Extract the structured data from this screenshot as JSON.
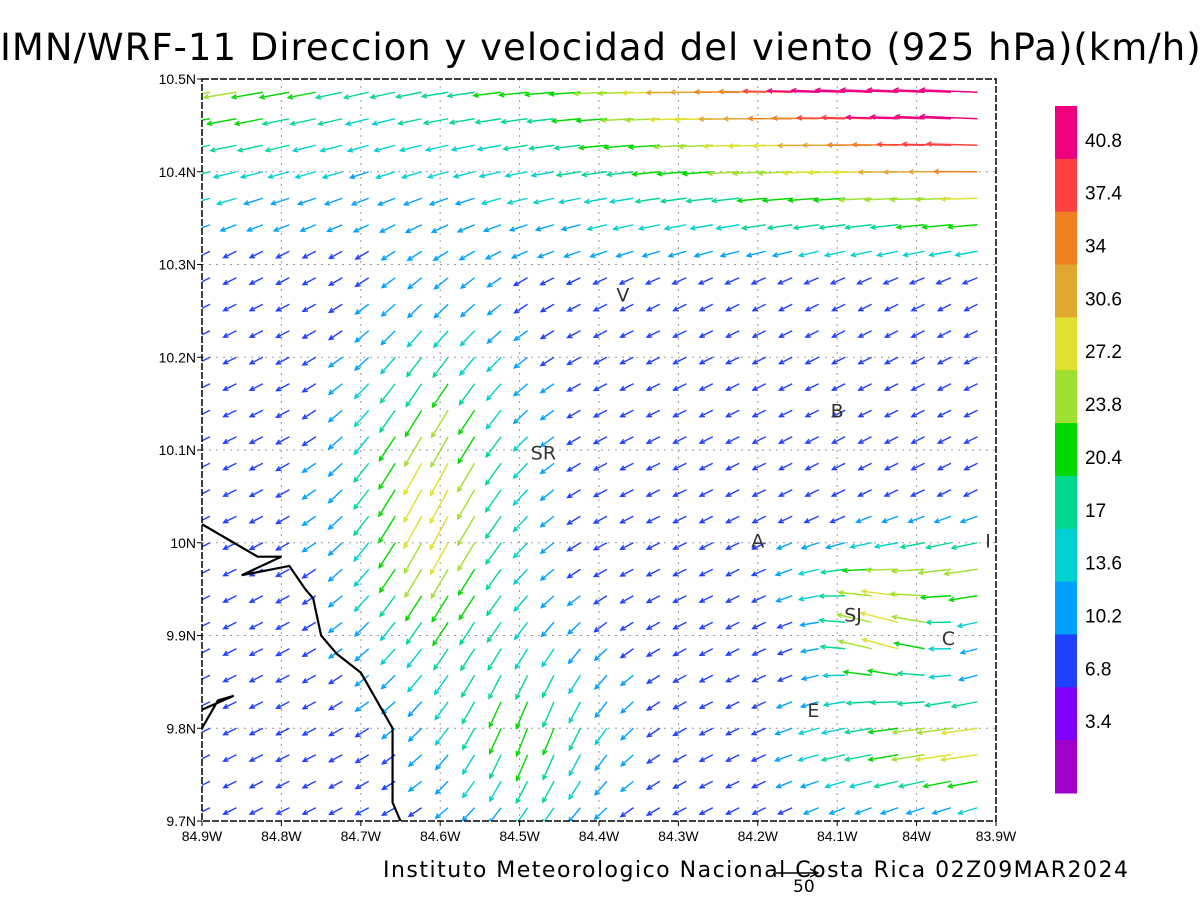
{
  "title": "IMN/WRF-11 Direccion y velocidad del viento (925 hPa)(km/h)",
  "footer": "Instituto Meteorologico Nacional Costa Rica 02Z09MAR2024",
  "vector_scale_label": "50",
  "axes": {
    "x_ticks": [
      "84.9W",
      "84.8W",
      "84.7W",
      "84.6W",
      "84.5W",
      "84.4W",
      "84.3W",
      "84.2W",
      "84.1W",
      "84W",
      "83.9W"
    ],
    "y_ticks": [
      "10.5N",
      "10.4N",
      "10.3N",
      "10.2N",
      "10.1N",
      "10N",
      "9.9N",
      "9.8N",
      "9.7N"
    ],
    "x_range": [
      -84.9,
      -83.9
    ],
    "y_range": [
      9.7,
      10.5
    ],
    "grid": "dotted"
  },
  "colorbar": {
    "levels": [
      "40.8",
      "37.4",
      "34",
      "30.6",
      "27.2",
      "23.8",
      "20.4",
      "17",
      "13.6",
      "10.2",
      "6.8",
      "3.4"
    ],
    "colors": [
      "#f0007f",
      "#ff4040",
      "#f08020",
      "#e0a830",
      "#e0e030",
      "#a0e030",
      "#00d800",
      "#00d890",
      "#00d0d0",
      "#00a0ff",
      "#2040ff",
      "#8000ff",
      "#a000c8"
    ]
  },
  "places": [
    {
      "label": "V",
      "lon": -84.37,
      "lat": 10.26
    },
    {
      "label": "B",
      "lon": -84.1,
      "lat": 10.135
    },
    {
      "label": "SR",
      "lon": -84.47,
      "lat": 10.09
    },
    {
      "label": "A",
      "lon": -84.2,
      "lat": 9.995
    },
    {
      "label": "I",
      "lon": -83.91,
      "lat": 9.995
    },
    {
      "label": "SJ",
      "lon": -84.08,
      "lat": 9.915
    },
    {
      "label": "C",
      "lon": -83.96,
      "lat": 9.89
    },
    {
      "label": "E",
      "lon": -84.13,
      "lat": 9.812
    }
  ],
  "coastline": [
    [
      -84.9,
      10.02
    ],
    [
      -84.86,
      10.0
    ],
    [
      -84.83,
      9.985
    ],
    [
      -84.8,
      9.985
    ],
    [
      -84.85,
      9.965
    ],
    [
      -84.79,
      9.975
    ],
    [
      -84.77,
      9.95
    ],
    [
      -84.76,
      9.94
    ],
    [
      -84.75,
      9.9
    ],
    [
      -84.73,
      9.88
    ],
    [
      -84.7,
      9.86
    ],
    [
      -84.68,
      9.83
    ],
    [
      -84.66,
      9.8
    ],
    [
      -84.66,
      9.72
    ],
    [
      -84.65,
      9.7
    ]
  ],
  "coastline_islet": [
    [
      -84.9,
      9.8
    ],
    [
      -84.88,
      9.83
    ],
    [
      -84.86,
      9.835
    ],
    [
      -84.9,
      9.82
    ]
  ]
}
